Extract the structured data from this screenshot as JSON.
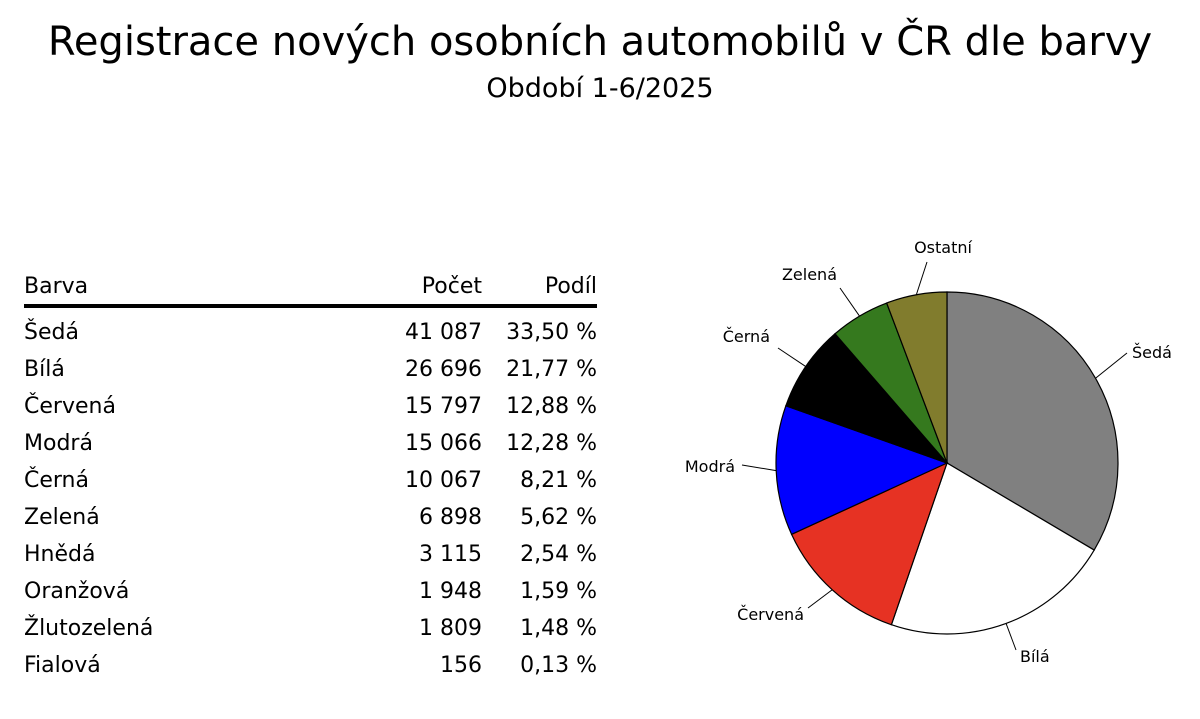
{
  "title": "Registrace nových osobních automobilů v ČR dle barvy",
  "subtitle": "Období 1-6/2025",
  "table": {
    "headers": [
      "Barva",
      "Počet",
      "Podíl"
    ],
    "rows": [
      [
        "Šedá",
        "41 087",
        "33,50 %"
      ],
      [
        "Bílá",
        "26 696",
        "21,77 %"
      ],
      [
        "Červená",
        "15 797",
        "12,88 %"
      ],
      [
        "Modrá",
        "15 066",
        "12,28 %"
      ],
      [
        "Černá",
        "10 067",
        "8,21 %"
      ],
      [
        "Zelená",
        "6 898",
        "5,62 %"
      ],
      [
        "Hnědá",
        "3 115",
        "2,54 %"
      ],
      [
        "Oranžová",
        "1 948",
        "1,59 %"
      ],
      [
        "Žlutozelená",
        "1 809",
        "1,48 %"
      ],
      [
        "Fialová",
        "156",
        "0,13 %"
      ]
    ]
  },
  "chart_data": {
    "type": "pie",
    "start": "top",
    "direction": "clockwise",
    "slices": [
      {
        "label": "Šedá",
        "value": 33.5,
        "color": "#808080"
      },
      {
        "label": "Bílá",
        "value": 21.77,
        "color": "#ffffff"
      },
      {
        "label": "Červená",
        "value": 12.88,
        "color": "#e63223"
      },
      {
        "label": "Modrá",
        "value": 12.28,
        "color": "#0000ff"
      },
      {
        "label": "Černá",
        "value": 8.21,
        "color": "#000000"
      },
      {
        "label": "Zelená",
        "value": 5.62,
        "color": "#35791e"
      },
      {
        "label": "Ostatní",
        "value": 5.74,
        "color": "#817c2d"
      }
    ]
  }
}
